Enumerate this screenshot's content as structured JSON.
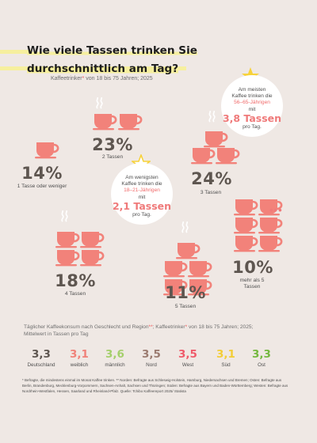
{
  "title_line1": "Wie viele Tassen trinken Sie",
  "title_line2": "durchschnittlich am Tag?",
  "subtitle_text": "Kaffeetrinker",
  "subtitle_mark": "*",
  "subtitle_rest": " von 18 bis 75 Jahren; 2025",
  "colors": {
    "cup": "#f2827a",
    "accent_yellow": "#f7d23a",
    "text_dark": "#5e5650",
    "highlight": "#f6ef9e"
  },
  "callout_high": {
    "line1": "Am meisten",
    "line2": "Kaffee trinken die",
    "age": "56–65-Jährigen",
    "mit": "mit",
    "value": "3,8 Tassen",
    "unit": "pro Tag."
  },
  "callout_low": {
    "line1": "Am wenigsten",
    "line2": "Kaffee trinken die",
    "age": "18–21-Jährigen",
    "mit": "mit",
    "value": "2,1 Tassen",
    "unit": "pro Tag."
  },
  "chart_data": {
    "type": "pictogram",
    "title": "Wie viele Tassen trinken Sie durchschnittlich am Tag?",
    "categories": [
      "1 Tasse oder weniger",
      "2 Tassen",
      "3 Tassen",
      "4 Tassen",
      "5 Tassen",
      "mehr als 5 Tassen"
    ],
    "values": [
      14,
      23,
      24,
      18,
      11,
      10
    ],
    "labels": [
      "14%",
      "23%",
      "24%",
      "18%",
      "11%",
      "10%"
    ],
    "cups": [
      1,
      2,
      3,
      4,
      5,
      6
    ]
  },
  "table": {
    "heading1": "Täglicher Kaffeekonsum nach Geschlecht und Region",
    "heading_mark": "**",
    "heading2": "; Kaffeetrinker",
    "heading_mark2": "*",
    "heading3": " von 18 bis 75 Jahren; 2025;",
    "heading4": "Mittelwert in Tassen pro Tag",
    "rows": [
      {
        "value": "3,3",
        "label": "Deutschland",
        "color": "#5e5650"
      },
      {
        "value": "3,1",
        "label": "weiblich",
        "color": "#f0827a"
      },
      {
        "value": "3,6",
        "label": "männlich",
        "color": "#a4cf6b"
      },
      {
        "value": "3,5",
        "label": "Nord",
        "color": "#9b7b70"
      },
      {
        "value": "3,5",
        "label": "West",
        "color": "#ef5a6a"
      },
      {
        "value": "3,1",
        "label": "Süd",
        "color": "#f3cd36"
      },
      {
        "value": "3,3",
        "label": "Ost",
        "color": "#74b83f"
      }
    ]
  },
  "footnote": "* Befragte, die mindestens einmal im Monat Kaffee trinken. ** Norden: Befragte aus Schleswig-Holstein, Hamburg, Niedersachsen und Bremen; Osten: Befragte aus Berlin, Brandenburg, Mecklenburg-Vorpommern, Sachsen-Anhalt, Sachsen und Thüringen; Süden: Befragte aus Bayern und Baden-Württemberg; Westen: Befragte aus Nordrhein-Westfalen, Hessen, Saarland und Rheinland-Pfalz. Quelle: Tchibo Kaffeereport 2025/ Statista"
}
